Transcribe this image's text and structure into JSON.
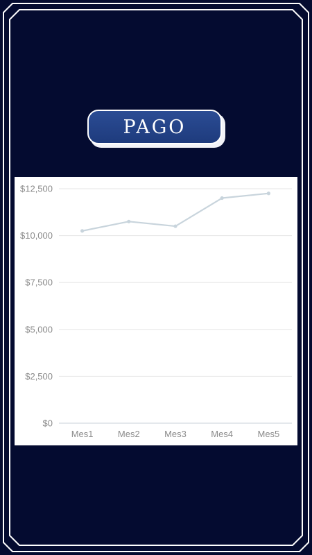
{
  "title": "PAGO",
  "colors": {
    "background": "#040b30",
    "frame": "#ffffff",
    "title_button": "#244690",
    "line": "#c8d4dc",
    "grid": "#e6e6e6"
  },
  "chart_data": {
    "type": "line",
    "categories": [
      "Mes1",
      "Mes2",
      "Mes3",
      "Mes4",
      "Mes5"
    ],
    "series": [
      {
        "values": [
          10250,
          10750,
          10500,
          12000,
          12250
        ]
      }
    ],
    "y_ticks": [
      "$0",
      "$2,500",
      "$5,000",
      "$7,500",
      "$10,000",
      "$12,500"
    ],
    "ylim": [
      0,
      12500
    ],
    "grid": true,
    "legend": "none"
  }
}
